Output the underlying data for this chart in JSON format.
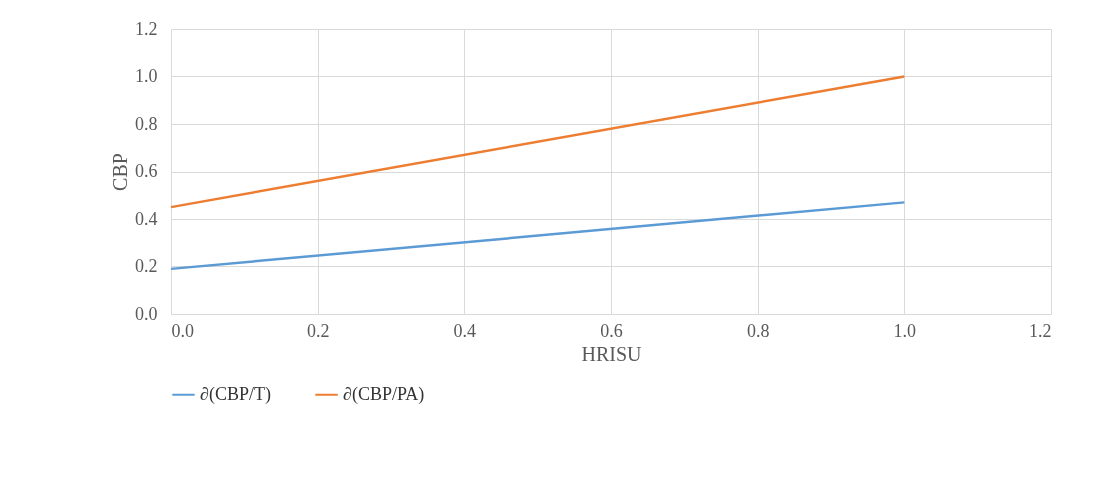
{
  "chart_data": {
    "type": "line",
    "xlabel": "HRISU",
    "ylabel": "CBP",
    "x": [
      0.0,
      1.0
    ],
    "series": [
      {
        "name": "∂(CBP/T)",
        "color": "#5b9bd5",
        "values": [
          0.19,
          0.47
        ]
      },
      {
        "name": "∂(CBP/PA)",
        "color": "#ed7d31",
        "values": [
          0.45,
          1.0
        ]
      }
    ],
    "xlim": [
      0,
      1.2
    ],
    "ylim": [
      0,
      1.2
    ],
    "xticks": [
      {
        "value": 0,
        "label": "0.0"
      },
      0.2,
      0.4,
      0.6,
      0.8,
      {
        "value": 1,
        "label": "1.0"
      },
      1.2
    ],
    "yticks": [
      {
        "value": 0,
        "label": "0.0"
      },
      0.2,
      0.4,
      0.6,
      0.8,
      {
        "value": 1,
        "label": "1.0"
      },
      1.2
    ],
    "grid": true,
    "legend": "bottom",
    "marker": "none",
    "line_style": "solid"
  }
}
